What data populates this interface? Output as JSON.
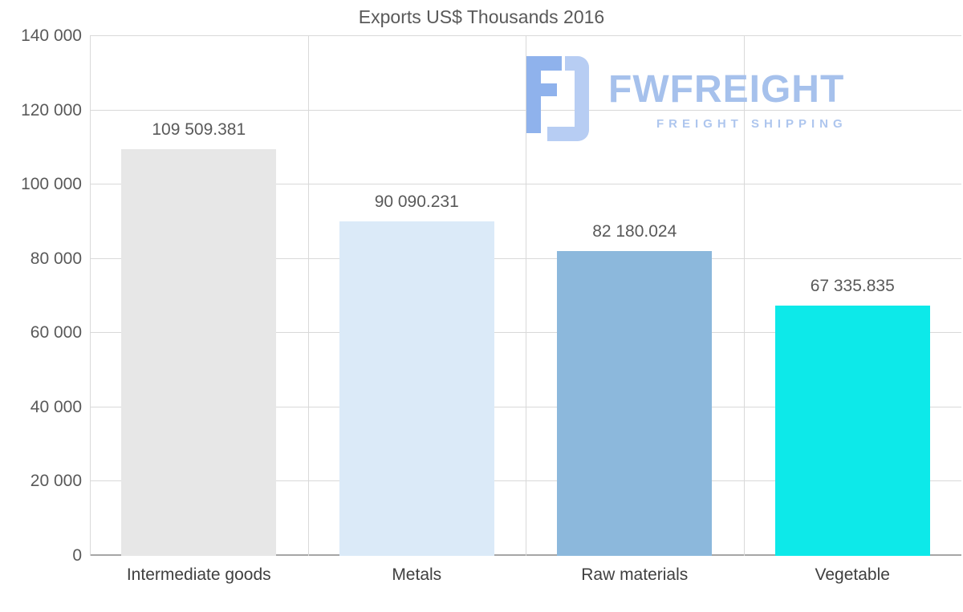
{
  "title": "Exports US$ Thousands 2016",
  "watermark": {
    "brand": "FWFREIGHT",
    "tagline": "FREIGHT SHIPPING",
    "color": "#a6c1ec"
  },
  "chart_data": {
    "type": "bar",
    "title": "Exports US$ Thousands 2016",
    "categories": [
      "Intermediate goods",
      "Metals",
      "Raw materials",
      "Vegetable"
    ],
    "values": [
      109509.381,
      90090.231,
      82180.024,
      67335.835
    ],
    "value_labels": [
      "109 509.381",
      "90 090.231",
      "82 180.024",
      "67 335.835"
    ],
    "bar_colors": [
      "#e7e7e7",
      "#dbeaf8",
      "#8cb8dc",
      "#0de9e9"
    ],
    "ylim": [
      0,
      140000
    ],
    "ytick_interval": 20000,
    "ytick_labels": [
      "0",
      "20 000",
      "40 000",
      "60 000",
      "80 000",
      "100 000",
      "120 000",
      "140 000"
    ],
    "grid": true,
    "legend_position": "none",
    "xlabel": "",
    "ylabel": ""
  }
}
